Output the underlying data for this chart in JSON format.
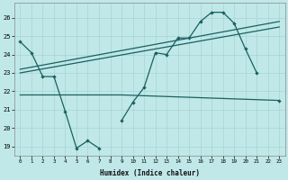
{
  "xlabel": "Humidex (Indice chaleur)",
  "bg_color": "#c0e8e8",
  "grid_color": "#a8d4d4",
  "line_color": "#1a6060",
  "x_values": [
    0,
    1,
    2,
    3,
    4,
    5,
    6,
    7,
    8,
    9,
    10,
    11,
    12,
    13,
    14,
    15,
    16,
    17,
    18,
    19,
    20,
    21,
    22,
    23
  ],
  "series1": [
    24.7,
    24.1,
    22.8,
    22.8,
    20.9,
    18.9,
    19.3,
    18.9,
    null,
    20.4,
    21.4,
    22.2,
    24.1,
    24.0,
    24.9,
    24.9,
    25.8,
    26.3,
    26.3,
    25.7,
    24.3,
    23.0,
    null,
    21.5
  ],
  "flat_line_x": [
    0,
    4,
    9,
    23
  ],
  "flat_line_y": [
    21.8,
    21.8,
    21.8,
    21.5
  ],
  "trend1_x": [
    0,
    23
  ],
  "trend1_y": [
    23.2,
    25.8
  ],
  "trend2_x": [
    0,
    23
  ],
  "trend2_y": [
    23.0,
    25.5
  ],
  "ylim": [
    18.5,
    26.8
  ],
  "xlim": [
    -0.5,
    23.5
  ],
  "yticks": [
    19,
    20,
    21,
    22,
    23,
    24,
    25,
    26
  ]
}
